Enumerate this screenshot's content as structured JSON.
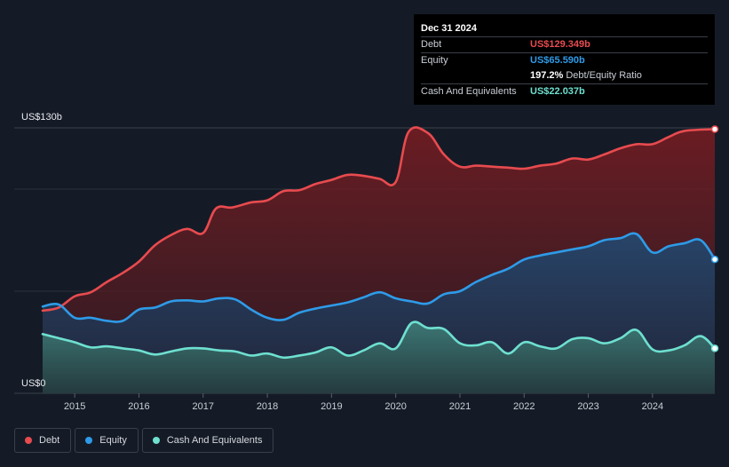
{
  "chart_data": {
    "type": "area",
    "y_axis": {
      "top_label": "US$130b",
      "bottom_label": "US$0",
      "ylim": [
        0,
        130
      ]
    },
    "x_axis": {
      "ticks": [
        "2015",
        "2016",
        "2017",
        "2018",
        "2019",
        "2020",
        "2021",
        "2022",
        "2023",
        "2024"
      ],
      "xlim": [
        2014.5,
        2024.97
      ]
    },
    "grid": true,
    "legend_position": "bottom-left",
    "series": [
      {
        "name": "Debt",
        "color": "#e84b4f",
        "points": [
          [
            2014.5,
            40.5
          ],
          [
            2014.75,
            42.0
          ],
          [
            2015.0,
            47.5
          ],
          [
            2015.25,
            49.5
          ],
          [
            2015.5,
            54.5
          ],
          [
            2015.75,
            59.0
          ],
          [
            2016.0,
            64.5
          ],
          [
            2016.25,
            72.5
          ],
          [
            2016.5,
            77.5
          ],
          [
            2016.75,
            80.5
          ],
          [
            2017.0,
            78.5
          ],
          [
            2017.2,
            90.5
          ],
          [
            2017.45,
            91.0
          ],
          [
            2017.75,
            93.5
          ],
          [
            2018.0,
            94.5
          ],
          [
            2018.25,
            99.0
          ],
          [
            2018.5,
            99.5
          ],
          [
            2018.75,
            102.5
          ],
          [
            2019.0,
            104.5
          ],
          [
            2019.25,
            107.0
          ],
          [
            2019.5,
            106.5
          ],
          [
            2019.75,
            105.0
          ],
          [
            2020.0,
            103.5
          ],
          [
            2020.2,
            128.0
          ],
          [
            2020.5,
            127.5
          ],
          [
            2020.75,
            117.0
          ],
          [
            2021.0,
            111.0
          ],
          [
            2021.25,
            111.5
          ],
          [
            2021.5,
            111.0
          ],
          [
            2021.75,
            110.5
          ],
          [
            2022.0,
            110.0
          ],
          [
            2022.25,
            111.5
          ],
          [
            2022.5,
            112.5
          ],
          [
            2022.75,
            115.0
          ],
          [
            2023.0,
            114.5
          ],
          [
            2023.25,
            117.0
          ],
          [
            2023.5,
            120.0
          ],
          [
            2023.75,
            122.0
          ],
          [
            2024.0,
            122.0
          ],
          [
            2024.25,
            125.5
          ],
          [
            2024.5,
            128.5
          ],
          [
            2024.97,
            129.349
          ]
        ]
      },
      {
        "name": "Equity",
        "color": "#2e9be8",
        "points": [
          [
            2014.5,
            42.5
          ],
          [
            2014.75,
            43.5
          ],
          [
            2015.0,
            37.0
          ],
          [
            2015.25,
            37.0
          ],
          [
            2015.5,
            35.5
          ],
          [
            2015.75,
            35.5
          ],
          [
            2016.0,
            41.0
          ],
          [
            2016.25,
            42.0
          ],
          [
            2016.5,
            45.0
          ],
          [
            2016.75,
            45.5
          ],
          [
            2017.0,
            45.0
          ],
          [
            2017.25,
            46.5
          ],
          [
            2017.5,
            46.0
          ],
          [
            2017.75,
            41.0
          ],
          [
            2018.0,
            37.0
          ],
          [
            2018.25,
            36.0
          ],
          [
            2018.5,
            39.5
          ],
          [
            2018.75,
            41.5
          ],
          [
            2019.0,
            43.0
          ],
          [
            2019.25,
            44.5
          ],
          [
            2019.5,
            47.0
          ],
          [
            2019.75,
            49.5
          ],
          [
            2020.0,
            46.5
          ],
          [
            2020.25,
            45.0
          ],
          [
            2020.5,
            44.0
          ],
          [
            2020.75,
            48.5
          ],
          [
            2021.0,
            50.0
          ],
          [
            2021.25,
            54.5
          ],
          [
            2021.5,
            58.0
          ],
          [
            2021.75,
            61.0
          ],
          [
            2022.0,
            65.5
          ],
          [
            2022.25,
            67.5
          ],
          [
            2022.5,
            69.0
          ],
          [
            2022.75,
            70.5
          ],
          [
            2023.0,
            72.0
          ],
          [
            2023.25,
            75.0
          ],
          [
            2023.5,
            76.0
          ],
          [
            2023.75,
            78.0
          ],
          [
            2024.0,
            69.0
          ],
          [
            2024.25,
            72.0
          ],
          [
            2024.5,
            73.5
          ],
          [
            2024.75,
            75.0
          ],
          [
            2024.97,
            65.59
          ]
        ]
      },
      {
        "name": "Cash And Equivalents",
        "color": "#6ee0d0",
        "points": [
          [
            2014.5,
            29.0
          ],
          [
            2014.75,
            27.0
          ],
          [
            2015.0,
            25.0
          ],
          [
            2015.25,
            22.5
          ],
          [
            2015.5,
            23.0
          ],
          [
            2015.75,
            22.0
          ],
          [
            2016.0,
            21.0
          ],
          [
            2016.25,
            19.0
          ],
          [
            2016.5,
            20.5
          ],
          [
            2016.75,
            22.0
          ],
          [
            2017.0,
            22.0
          ],
          [
            2017.25,
            21.0
          ],
          [
            2017.5,
            20.5
          ],
          [
            2017.75,
            18.5
          ],
          [
            2018.0,
            19.5
          ],
          [
            2018.25,
            17.5
          ],
          [
            2018.5,
            18.5
          ],
          [
            2018.75,
            20.0
          ],
          [
            2019.0,
            22.5
          ],
          [
            2019.25,
            18.5
          ],
          [
            2019.5,
            21.0
          ],
          [
            2019.75,
            24.5
          ],
          [
            2020.0,
            22.0
          ],
          [
            2020.25,
            34.5
          ],
          [
            2020.5,
            32.0
          ],
          [
            2020.75,
            31.5
          ],
          [
            2021.0,
            24.5
          ],
          [
            2021.25,
            23.5
          ],
          [
            2021.5,
            25.0
          ],
          [
            2021.75,
            19.5
          ],
          [
            2022.0,
            25.0
          ],
          [
            2022.25,
            23.0
          ],
          [
            2022.5,
            22.0
          ],
          [
            2022.75,
            26.5
          ],
          [
            2023.0,
            27.0
          ],
          [
            2023.25,
            24.5
          ],
          [
            2023.5,
            27.0
          ],
          [
            2023.75,
            31.0
          ],
          [
            2024.0,
            21.5
          ],
          [
            2024.25,
            21.0
          ],
          [
            2024.5,
            23.5
          ],
          [
            2024.75,
            28.0
          ],
          [
            2024.97,
            22.037
          ]
        ]
      }
    ],
    "tooltip": {
      "date": "Dec 31 2024",
      "rows": [
        {
          "label": "Debt",
          "value": "US$129.349b",
          "color": "#e84b4f"
        },
        {
          "label": "Equity",
          "value": "US$65.590b",
          "color": "#2e9be8"
        },
        {
          "label": "",
          "value": "197.2%",
          "suffix": "Debt/Equity Ratio",
          "color": "#ffffff"
        },
        {
          "label": "Cash And Equivalents",
          "value": "US$22.037b",
          "color": "#6ee0d0"
        }
      ]
    }
  },
  "legend": {
    "items": [
      {
        "label": "Debt",
        "color": "#e84b4f"
      },
      {
        "label": "Equity",
        "color": "#2e9be8"
      },
      {
        "label": "Cash And Equivalents",
        "color": "#6ee0d0"
      }
    ]
  }
}
